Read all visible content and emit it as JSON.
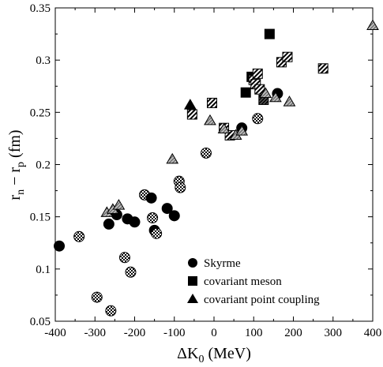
{
  "chart_data": {
    "type": "scatter",
    "xlabel": "ΔK",
    "xlabel_sub": "0",
    "xlabel_unit": " (MeV)",
    "ylabel_main": "r",
    "ylabel_sub1": "n",
    "ylabel_mid": " − r",
    "ylabel_sub2": "p",
    "ylabel_unit": " (fm)",
    "xlim": [
      -400,
      400
    ],
    "ylim": [
      0.05,
      0.35
    ],
    "xticks": [
      -400,
      -300,
      -200,
      -100,
      0,
      100,
      200,
      300,
      400
    ],
    "xtick_labels": [
      "-400",
      "-300",
      "-200",
      "-100",
      "0",
      "100",
      "200",
      "300",
      "400"
    ],
    "yticks": [
      0.05,
      0.1,
      0.15,
      0.2,
      0.25,
      0.3,
      0.35
    ],
    "ytick_labels": [
      "0.05",
      "0.1",
      "0.15",
      "0.2",
      "0.25",
      "0.3",
      "0.35"
    ],
    "grid": false,
    "legend_position": "bottom-right",
    "series": [
      {
        "name": "Skyrme",
        "marker": "circle",
        "points": [
          {
            "x": -390,
            "y": 0.122,
            "fill": "solid"
          },
          {
            "x": -340,
            "y": 0.131,
            "fill": "check"
          },
          {
            "x": -295,
            "y": 0.073,
            "fill": "check"
          },
          {
            "x": -265,
            "y": 0.143,
            "fill": "solid"
          },
          {
            "x": -260,
            "y": 0.06,
            "fill": "check"
          },
          {
            "x": -245,
            "y": 0.152,
            "fill": "solid"
          },
          {
            "x": -225,
            "y": 0.111,
            "fill": "check"
          },
          {
            "x": -218,
            "y": 0.148,
            "fill": "solid"
          },
          {
            "x": -210,
            "y": 0.097,
            "fill": "check"
          },
          {
            "x": -200,
            "y": 0.145,
            "fill": "solid"
          },
          {
            "x": -175,
            "y": 0.171,
            "fill": "check"
          },
          {
            "x": -158,
            "y": 0.168,
            "fill": "solid"
          },
          {
            "x": -155,
            "y": 0.149,
            "fill": "check"
          },
          {
            "x": -150,
            "y": 0.137,
            "fill": "solid"
          },
          {
            "x": -145,
            "y": 0.134,
            "fill": "check"
          },
          {
            "x": -118,
            "y": 0.158,
            "fill": "solid"
          },
          {
            "x": -100,
            "y": 0.151,
            "fill": "solid"
          },
          {
            "x": -88,
            "y": 0.184,
            "fill": "check"
          },
          {
            "x": -85,
            "y": 0.178,
            "fill": "check"
          },
          {
            "x": -20,
            "y": 0.211,
            "fill": "check"
          },
          {
            "x": 70,
            "y": 0.235,
            "fill": "solid"
          },
          {
            "x": 110,
            "y": 0.244,
            "fill": "check"
          },
          {
            "x": 160,
            "y": 0.268,
            "fill": "solid"
          }
        ]
      },
      {
        "name": "covariant meson",
        "marker": "square",
        "points": [
          {
            "x": -55,
            "y": 0.248,
            "fill": "hatch"
          },
          {
            "x": -5,
            "y": 0.259,
            "fill": "hatch"
          },
          {
            "x": 25,
            "y": 0.235,
            "fill": "hatch"
          },
          {
            "x": 40,
            "y": 0.228,
            "fill": "hatch"
          },
          {
            "x": 80,
            "y": 0.269,
            "fill": "solid"
          },
          {
            "x": 95,
            "y": 0.284,
            "fill": "solid"
          },
          {
            "x": 100,
            "y": 0.281,
            "fill": "hatch"
          },
          {
            "x": 105,
            "y": 0.277,
            "fill": "hatch"
          },
          {
            "x": 110,
            "y": 0.287,
            "fill": "hatch"
          },
          {
            "x": 115,
            "y": 0.272,
            "fill": "hatch"
          },
          {
            "x": 125,
            "y": 0.262,
            "fill": "dark-hatch"
          },
          {
            "x": 140,
            "y": 0.325,
            "fill": "solid"
          },
          {
            "x": 170,
            "y": 0.298,
            "fill": "hatch"
          },
          {
            "x": 185,
            "y": 0.303,
            "fill": "hatch"
          },
          {
            "x": 275,
            "y": 0.292,
            "fill": "hatch"
          }
        ]
      },
      {
        "name": "covariant point coupling",
        "marker": "triangle",
        "points": [
          {
            "x": -270,
            "y": 0.154,
            "fill": "gray"
          },
          {
            "x": -255,
            "y": 0.157,
            "fill": "gray"
          },
          {
            "x": -240,
            "y": 0.161,
            "fill": "gray"
          },
          {
            "x": -105,
            "y": 0.205,
            "fill": "gray"
          },
          {
            "x": -60,
            "y": 0.257,
            "fill": "solid"
          },
          {
            "x": -10,
            "y": 0.242,
            "fill": "gray"
          },
          {
            "x": 25,
            "y": 0.234,
            "fill": "gray"
          },
          {
            "x": 55,
            "y": 0.228,
            "fill": "gray"
          },
          {
            "x": 70,
            "y": 0.232,
            "fill": "gray"
          },
          {
            "x": 130,
            "y": 0.268,
            "fill": "gray"
          },
          {
            "x": 155,
            "y": 0.264,
            "fill": "gray"
          },
          {
            "x": 190,
            "y": 0.26,
            "fill": "gray"
          },
          {
            "x": 400,
            "y": 0.333,
            "fill": "gray"
          }
        ]
      }
    ]
  }
}
